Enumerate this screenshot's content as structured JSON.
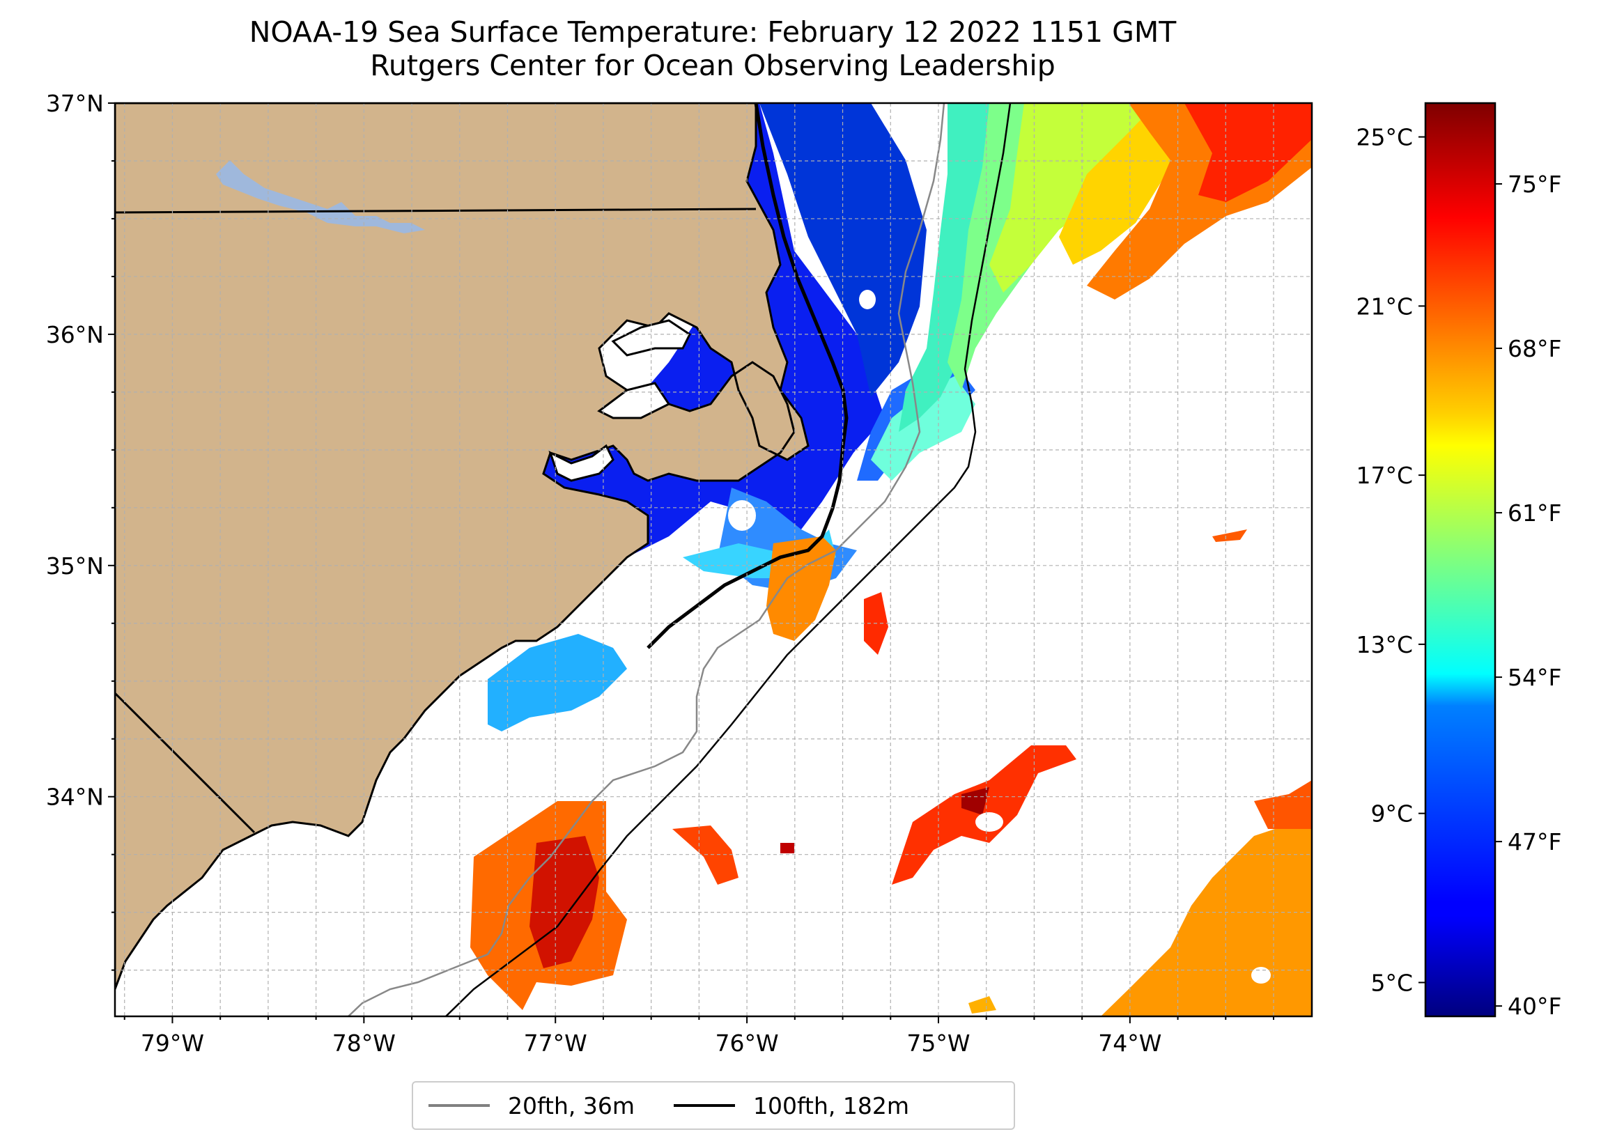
{
  "title": {
    "line1": "NOAA-19 Sea Surface Temperature: February 12 2022 1151 GMT",
    "line2": "Rutgers Center for Ocean Observing Leadership"
  },
  "map": {
    "extent": {
      "lon_min": -79.3,
      "lon_max": -73.05,
      "lat_min": 33.05,
      "lat_max": 37.0
    },
    "lat_ticks": [
      {
        "value": 37,
        "label": "37°N"
      },
      {
        "value": 36,
        "label": "36°N"
      },
      {
        "value": 35,
        "label": "35°N"
      },
      {
        "value": 34,
        "label": "34°N"
      }
    ],
    "lon_ticks": [
      {
        "value": -79,
        "label": "79°W"
      },
      {
        "value": -78,
        "label": "78°W"
      },
      {
        "value": -77,
        "label": "77°W"
      },
      {
        "value": -76,
        "label": "76°W"
      },
      {
        "value": -75,
        "label": "75°W"
      },
      {
        "value": -74,
        "label": "74°W"
      }
    ],
    "land_color": "#d2b48c",
    "lake_color": "#9fb8dc",
    "gridlines": "dashed gray, every 0.25°"
  },
  "colorbar": {
    "celsius_ticks": [
      "25°C",
      "21°C",
      "17°C",
      "13°C",
      "9°C",
      "5°C"
    ],
    "fahrenheit_ticks": [
      "75°F",
      "68°F",
      "61°F",
      "54°F",
      "47°F",
      "40°F"
    ],
    "colormap": "jet",
    "range_celsius": [
      4.2,
      25.8
    ]
  },
  "legend": {
    "items": [
      {
        "label": "20fth, 36m",
        "color": "#808080"
      },
      {
        "label": "100fth, 182m",
        "color": "#000000"
      }
    ]
  }
}
